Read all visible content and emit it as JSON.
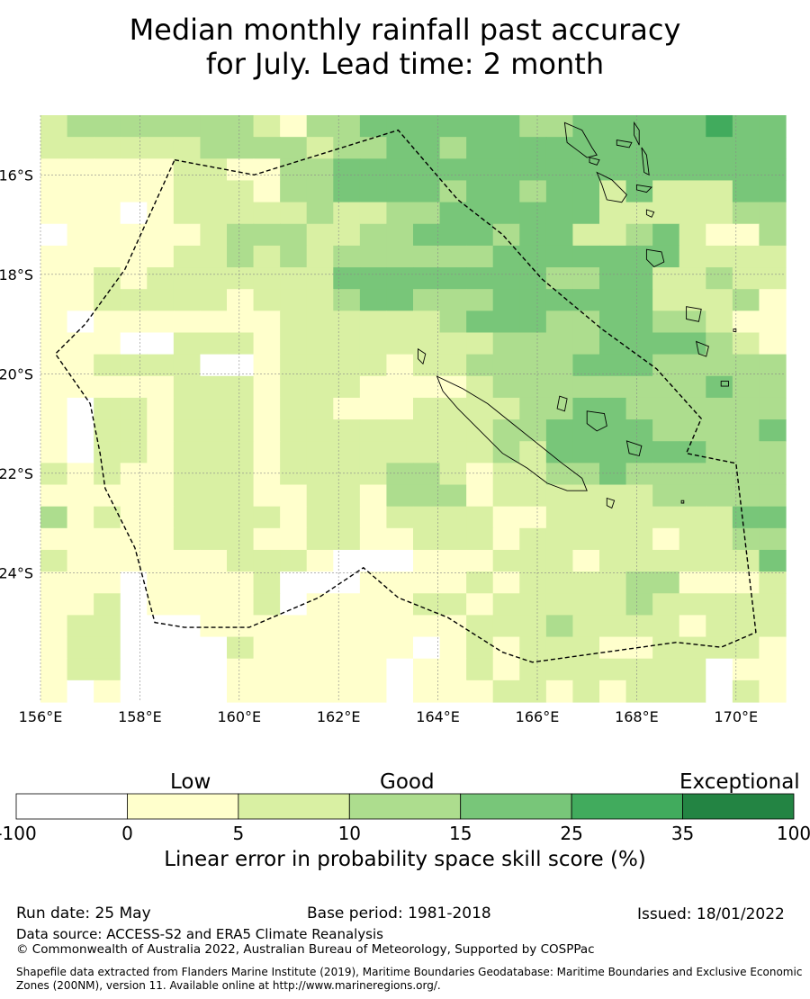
{
  "title": {
    "line1": "Median monthly rainfall past accuracy",
    "line2": "for July. Lead time: 2 month"
  },
  "map": {
    "lon_range": [
      156,
      171
    ],
    "lat_range": [
      -14.8,
      -26.6
    ],
    "lon_ticks": [
      "156°E",
      "158°E",
      "160°E",
      "162°E",
      "164°E",
      "166°E",
      "168°E",
      "170°E"
    ],
    "lat_ticks": [
      "16°S",
      "18°S",
      "20°S",
      "22°S",
      "24°S"
    ],
    "skill_grid_note": "Cell values are colour-class indices: 0 = -100..0, 1 = 0..5, 2 = 5..10, 3 = 10..15, 4 = 15..25, 5 = 25..35, 6 = 35..100",
    "skill_grid": [
      [
        2,
        3,
        3,
        3,
        3,
        3,
        3,
        3,
        2,
        1,
        3,
        3,
        4,
        4,
        4,
        4,
        4,
        4,
        3,
        3,
        4,
        4,
        4,
        4,
        4,
        5,
        4,
        4
      ],
      [
        2,
        2,
        2,
        2,
        2,
        2,
        3,
        3,
        3,
        3,
        2,
        3,
        3,
        4,
        4,
        3,
        4,
        4,
        4,
        4,
        4,
        4,
        4,
        4,
        4,
        4,
        4,
        4
      ],
      [
        1,
        1,
        1,
        1,
        1,
        2,
        2,
        1,
        1,
        3,
        3,
        4,
        4,
        4,
        4,
        4,
        4,
        4,
        4,
        4,
        4,
        4,
        4,
        4,
        4,
        4,
        4,
        4
      ],
      [
        1,
        1,
        1,
        1,
        1,
        2,
        2,
        2,
        1,
        3,
        3,
        4,
        4,
        4,
        4,
        3,
        4,
        4,
        3,
        4,
        4,
        2,
        4,
        2,
        2,
        2,
        4,
        4
      ],
      [
        1,
        1,
        1,
        0,
        1,
        2,
        2,
        2,
        2,
        2,
        3,
        2,
        2,
        3,
        3,
        4,
        4,
        4,
        4,
        4,
        4,
        2,
        2,
        2,
        2,
        2,
        3,
        3
      ],
      [
        0,
        1,
        1,
        1,
        1,
        1,
        2,
        3,
        3,
        3,
        2,
        2,
        3,
        3,
        4,
        4,
        4,
        3,
        4,
        4,
        2,
        2,
        3,
        4,
        2,
        1,
        1,
        3
      ],
      [
        1,
        1,
        1,
        1,
        1,
        2,
        2,
        3,
        2,
        3,
        2,
        3,
        3,
        3,
        3,
        3,
        3,
        4,
        4,
        4,
        4,
        4,
        4,
        4,
        2,
        2,
        2,
        2
      ],
      [
        1,
        1,
        2,
        1,
        2,
        2,
        2,
        2,
        2,
        2,
        2,
        4,
        4,
        4,
        4,
        4,
        4,
        4,
        4,
        3,
        3,
        4,
        4,
        2,
        2,
        3,
        2,
        2
      ],
      [
        1,
        1,
        2,
        2,
        2,
        2,
        2,
        1,
        2,
        2,
        2,
        3,
        4,
        4,
        3,
        3,
        3,
        4,
        4,
        4,
        4,
        4,
        4,
        2,
        2,
        2,
        3,
        1
      ],
      [
        1,
        0,
        1,
        1,
        1,
        1,
        1,
        1,
        1,
        2,
        2,
        2,
        2,
        2,
        2,
        3,
        4,
        4,
        4,
        3,
        3,
        4,
        4,
        3,
        3,
        2,
        1,
        1
      ],
      [
        1,
        1,
        1,
        0,
        0,
        2,
        2,
        2,
        1,
        2,
        2,
        2,
        2,
        2,
        2,
        2,
        2,
        3,
        3,
        3,
        3,
        4,
        4,
        4,
        4,
        3,
        2,
        1
      ],
      [
        1,
        1,
        2,
        2,
        2,
        2,
        0,
        0,
        1,
        2,
        2,
        2,
        2,
        1,
        2,
        2,
        3,
        3,
        3,
        3,
        4,
        4,
        4,
        3,
        3,
        3,
        3,
        3
      ],
      [
        1,
        1,
        1,
        1,
        1,
        2,
        2,
        2,
        1,
        2,
        2,
        2,
        1,
        1,
        1,
        1,
        2,
        3,
        3,
        3,
        3,
        3,
        3,
        3,
        3,
        4,
        3,
        3
      ],
      [
        1,
        0,
        2,
        2,
        1,
        2,
        2,
        2,
        1,
        2,
        2,
        1,
        1,
        1,
        2,
        2,
        2,
        2,
        3,
        3,
        4,
        4,
        3,
        3,
        3,
        3,
        3,
        3
      ],
      [
        1,
        0,
        2,
        2,
        1,
        2,
        2,
        2,
        1,
        2,
        2,
        2,
        2,
        2,
        2,
        2,
        2,
        3,
        3,
        4,
        4,
        4,
        4,
        3,
        3,
        3,
        3,
        4
      ],
      [
        1,
        0,
        2,
        2,
        1,
        2,
        2,
        2,
        1,
        2,
        2,
        2,
        2,
        2,
        2,
        2,
        2,
        3,
        2,
        4,
        4,
        4,
        4,
        4,
        4,
        3,
        3,
        3
      ],
      [
        2,
        1,
        2,
        1,
        1,
        2,
        2,
        2,
        1,
        2,
        2,
        2,
        2,
        3,
        3,
        2,
        1,
        2,
        2,
        3,
        3,
        4,
        3,
        3,
        3,
        3,
        3,
        3
      ],
      [
        1,
        1,
        1,
        1,
        1,
        2,
        2,
        2,
        1,
        1,
        2,
        2,
        1,
        3,
        3,
        3,
        1,
        2,
        2,
        2,
        2,
        2,
        2,
        3,
        3,
        3,
        3,
        3
      ],
      [
        3,
        1,
        2,
        1,
        1,
        2,
        2,
        2,
        2,
        1,
        2,
        2,
        1,
        2,
        2,
        2,
        2,
        1,
        1,
        2,
        2,
        2,
        2,
        2,
        2,
        2,
        4,
        4
      ],
      [
        1,
        1,
        1,
        1,
        1,
        2,
        2,
        2,
        1,
        1,
        2,
        2,
        1,
        1,
        2,
        2,
        2,
        1,
        2,
        2,
        2,
        2,
        2,
        1,
        2,
        2,
        3,
        3
      ],
      [
        2,
        1,
        1,
        1,
        1,
        1,
        1,
        2,
        2,
        2,
        1,
        0,
        0,
        0,
        1,
        1,
        1,
        2,
        2,
        2,
        1,
        2,
        2,
        2,
        2,
        2,
        2,
        4
      ],
      [
        1,
        1,
        1,
        0,
        1,
        1,
        1,
        1,
        2,
        0,
        0,
        0,
        1,
        1,
        1,
        1,
        2,
        1,
        2,
        2,
        2,
        2,
        3,
        3,
        1,
        1,
        1,
        2
      ],
      [
        1,
        1,
        2,
        0,
        1,
        1,
        1,
        1,
        2,
        0,
        1,
        1,
        1,
        1,
        2,
        2,
        1,
        2,
        2,
        2,
        2,
        2,
        3,
        2,
        2,
        2,
        2,
        2
      ],
      [
        1,
        2,
        2,
        0,
        0,
        0,
        1,
        1,
        1,
        1,
        1,
        1,
        1,
        1,
        1,
        1,
        2,
        2,
        2,
        3,
        2,
        2,
        2,
        2,
        1,
        2,
        2,
        2
      ],
      [
        1,
        2,
        2,
        0,
        0,
        0,
        0,
        2,
        1,
        1,
        1,
        1,
        1,
        1,
        0,
        1,
        2,
        1,
        2,
        2,
        2,
        1,
        1,
        2,
        2,
        2,
        2,
        1
      ],
      [
        1,
        2,
        2,
        0,
        0,
        0,
        0,
        1,
        1,
        1,
        1,
        1,
        1,
        0,
        1,
        1,
        2,
        1,
        2,
        2,
        2,
        2,
        2,
        2,
        2,
        0,
        1,
        1
      ],
      [
        1,
        0,
        1,
        0,
        0,
        0,
        0,
        1,
        1,
        1,
        1,
        1,
        1,
        0,
        1,
        1,
        1,
        2,
        2,
        1,
        2,
        1,
        2,
        2,
        2,
        0,
        2,
        1
      ]
    ]
  },
  "legend": {
    "categories": [
      "Low",
      "Good",
      "Exceptional"
    ],
    "boundaries": [
      "-100",
      "0",
      "5",
      "10",
      "15",
      "25",
      "35",
      "100"
    ],
    "colors": [
      "#ffffff",
      "#ffffcc",
      "#d9f0a3",
      "#addd8e",
      "#78c679",
      "#41ab5d",
      "#238443"
    ],
    "title": "Linear error in probability space skill score (%)"
  },
  "footer": {
    "run_date": "Run date: 25 May",
    "base_period": "Base period: 1981-2018",
    "issued": "Issued: 18/01/2022",
    "data_source": "Data source: ACCESS-S2 and ERA5 Climate Reanalysis",
    "copyright": "© Commonwealth of Australia 2022, Australian Bureau of Meteorology, Supported by COSPPac",
    "shapefile": "Shapefile data extracted from Flanders Marine Institute (2019), Maritime Boundaries Geodatabase: Maritime Boundaries and Exclusive Economic Zones (200NM), version 11. Available online at http://www.marineregions.org/."
  }
}
